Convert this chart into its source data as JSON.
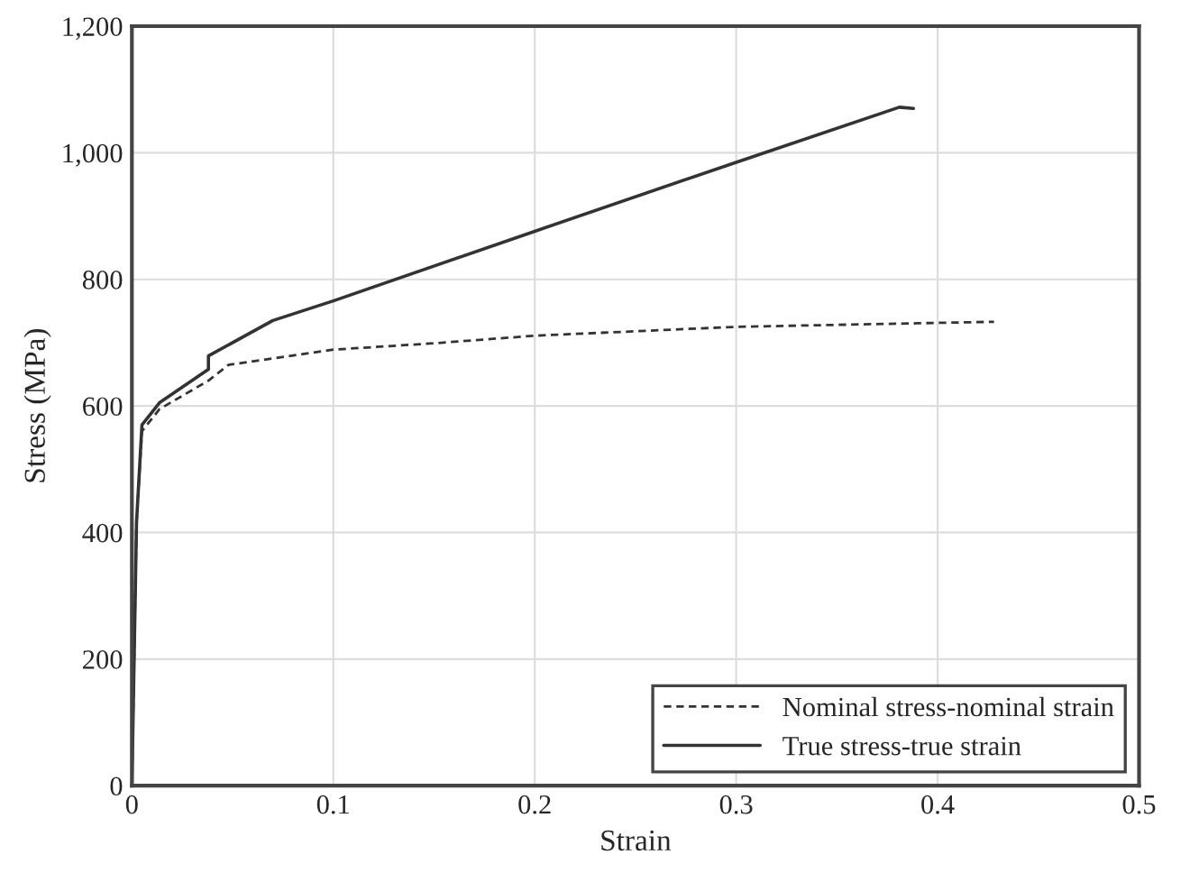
{
  "chart_data": {
    "type": "line",
    "xlabel": "Strain",
    "ylabel": "Stress (MPa)",
    "xlim": [
      0,
      0.5
    ],
    "xticks": [
      0,
      0.1,
      0.2,
      0.3,
      0.4,
      0.5
    ],
    "ylim": [
      0,
      1200
    ],
    "yticks": [
      0,
      200,
      400,
      600,
      800,
      {
        "value": 1000,
        "label": "1,000"
      },
      {
        "value": 1200,
        "label": "1,200"
      }
    ],
    "grid": true,
    "legend": "bottom right",
    "series": [
      {
        "name": "Nominal stress-nominal strain",
        "color": "#333333",
        "line_style": "dashed",
        "x": [
          0,
          0.0023,
          0.005,
          0.0137,
          0.038,
          0.048,
          0.1,
          0.15,
          0.2,
          0.3,
          0.428
        ],
        "values": [
          0,
          416,
          560,
          595,
          640,
          665,
          689,
          699,
          711,
          725,
          733
        ]
      },
      {
        "name": "True stress-true strain",
        "color": "#333333",
        "line_style": "solid",
        "x": [
          0,
          0.0023,
          0.005,
          0.0137,
          0.038,
          0.038,
          0.07,
          0.1,
          0.2,
          0.3,
          0.381,
          0.388
        ],
        "values": [
          0,
          416,
          570,
          605,
          658,
          679,
          735,
          766,
          876,
          985,
          1072,
          1070
        ]
      }
    ]
  }
}
